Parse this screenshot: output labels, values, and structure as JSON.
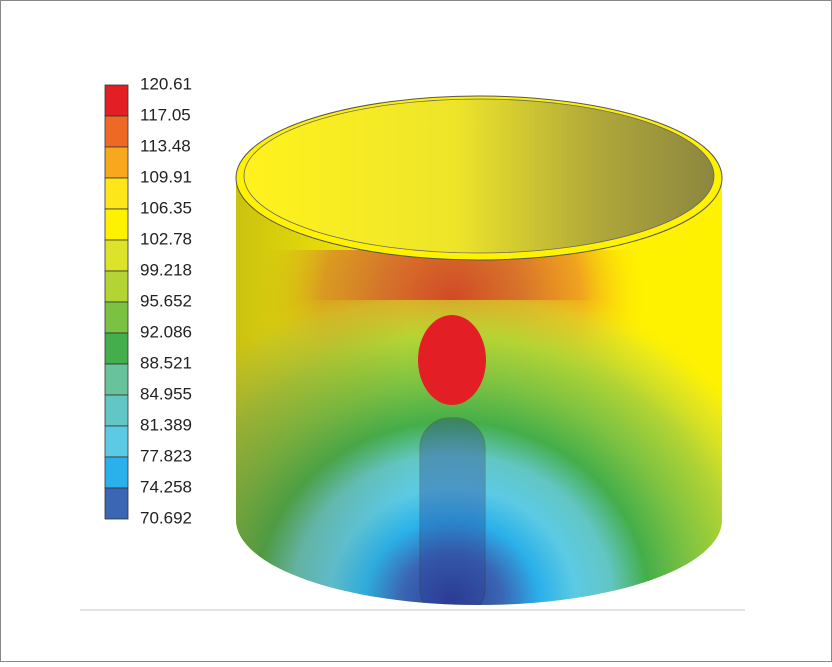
{
  "legend": {
    "labels": [
      "120.61",
      "117.05",
      "113.48",
      "109.91",
      "106.35",
      "102.78",
      "99.218",
      "95.652",
      "92.086",
      "88.521",
      "84.955",
      "81.389",
      "77.823",
      "74.258",
      "70.692"
    ],
    "colors": [
      "#e31e24",
      "#ee6a24",
      "#f8a81c",
      "#fde61a",
      "#fff200",
      "#dde22a",
      "#b4d434",
      "#7cc242",
      "#44ae4a",
      "#68c29c",
      "#62c6c4",
      "#5ccae4",
      "#2ab0ea",
      "#3a66b4",
      "#2c3c96"
    ]
  }
}
